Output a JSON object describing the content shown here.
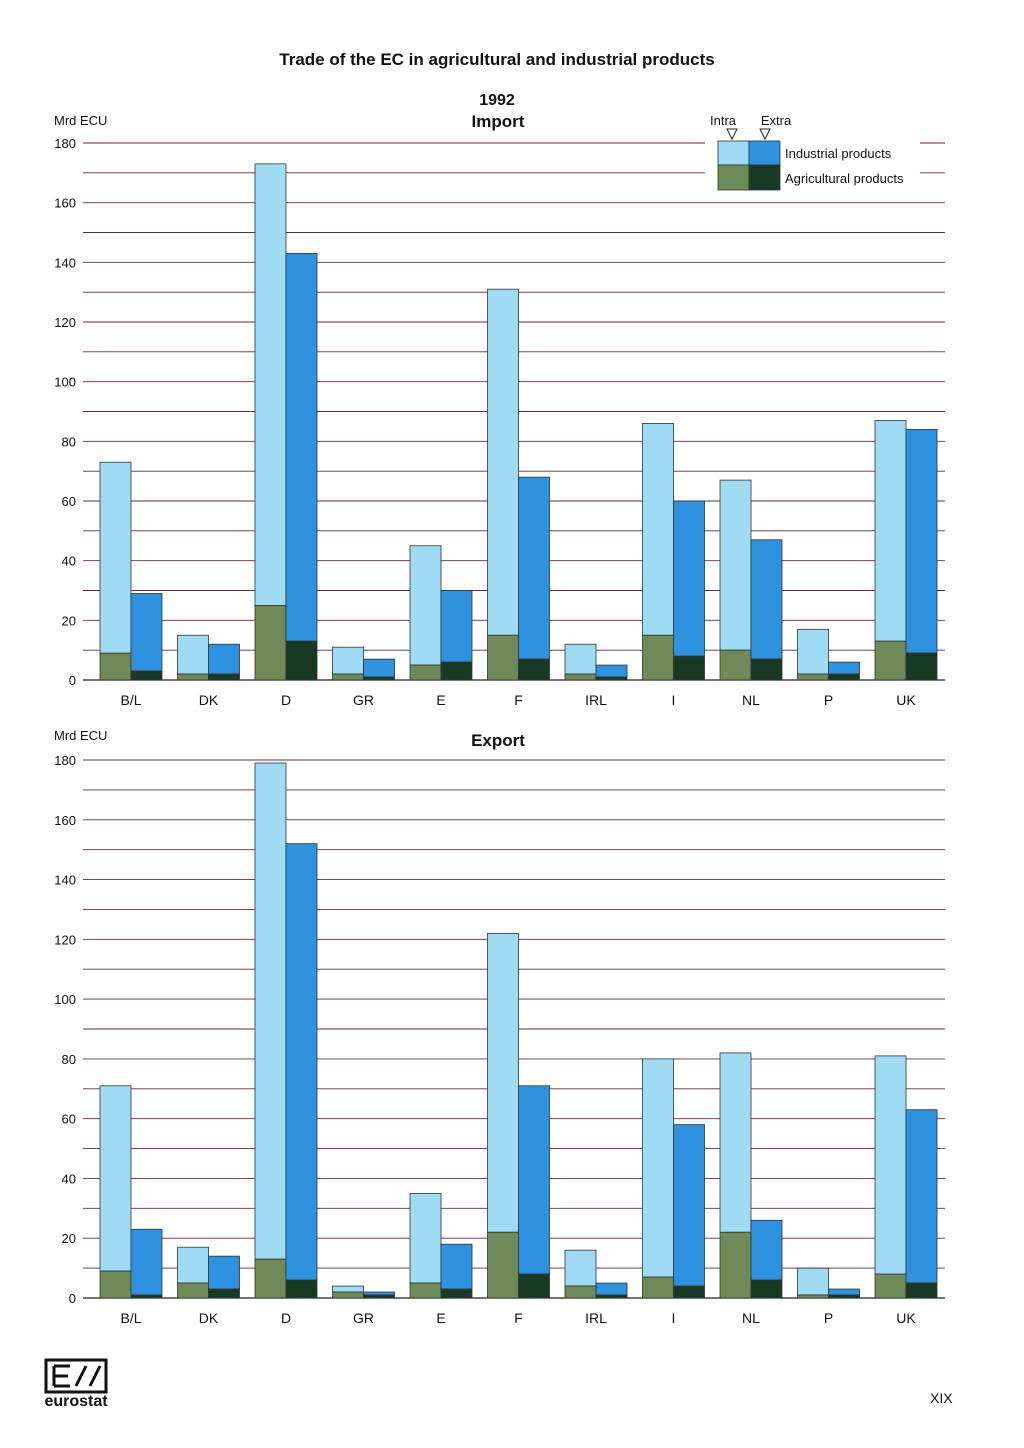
{
  "title": "Trade of the EC in agricultural and industrial products",
  "year": "1992",
  "page_number": "XIX",
  "logo": {
    "text": "eurostat",
    "icon": "eurostat-logo-icon"
  },
  "legend": {
    "intra_label": "Intra",
    "extra_label": "Extra",
    "industrial_label": "Industrial products",
    "agricultural_label": "Agricultural products"
  },
  "colors": {
    "intra_industrial": "#9fdcf3",
    "extra_industrial": "#2e92de",
    "intra_agricultural": "#6e8a58",
    "extra_agricultural": "#183a24",
    "gridline": "#6a2830"
  },
  "chart_data": [
    {
      "type": "bar",
      "subtitle": "Import",
      "ylabel": "Mrd ECU",
      "ylim": [
        0,
        180
      ],
      "yticks": [
        0,
        20,
        40,
        60,
        80,
        100,
        120,
        140,
        160,
        180
      ],
      "categories": [
        "B/L",
        "DK",
        "D",
        "GR",
        "E",
        "F",
        "IRL",
        "I",
        "NL",
        "P",
        "UK"
      ],
      "series": [
        {
          "name": "Intra",
          "total": [
            73,
            15,
            173,
            11,
            45,
            131,
            12,
            86,
            67,
            17,
            87
          ],
          "agricultural": [
            9,
            2,
            25,
            2,
            5,
            15,
            2,
            15,
            10,
            2,
            13
          ]
        },
        {
          "name": "Extra",
          "total": [
            29,
            12,
            143,
            7,
            30,
            68,
            5,
            60,
            47,
            6,
            84
          ],
          "agricultural": [
            3,
            2,
            13,
            1,
            6,
            7,
            1,
            8,
            7,
            2,
            9
          ]
        }
      ]
    },
    {
      "type": "bar",
      "subtitle": "Export",
      "ylabel": "Mrd ECU",
      "ylim": [
        0,
        180
      ],
      "yticks": [
        0,
        20,
        40,
        60,
        80,
        100,
        120,
        140,
        160,
        180
      ],
      "categories": [
        "B/L",
        "DK",
        "D",
        "GR",
        "E",
        "F",
        "IRL",
        "I",
        "NL",
        "P",
        "UK"
      ],
      "series": [
        {
          "name": "Intra",
          "total": [
            71,
            17,
            179,
            4,
            35,
            122,
            16,
            80,
            82,
            10,
            81
          ],
          "agricultural": [
            9,
            5,
            13,
            2,
            5,
            22,
            4,
            7,
            22,
            1,
            8
          ]
        },
        {
          "name": "Extra",
          "total": [
            23,
            14,
            152,
            2,
            18,
            71,
            5,
            58,
            26,
            3,
            63
          ],
          "agricultural": [
            1,
            3,
            6,
            1,
            3,
            8,
            1,
            4,
            6,
            1,
            5
          ]
        }
      ]
    }
  ]
}
